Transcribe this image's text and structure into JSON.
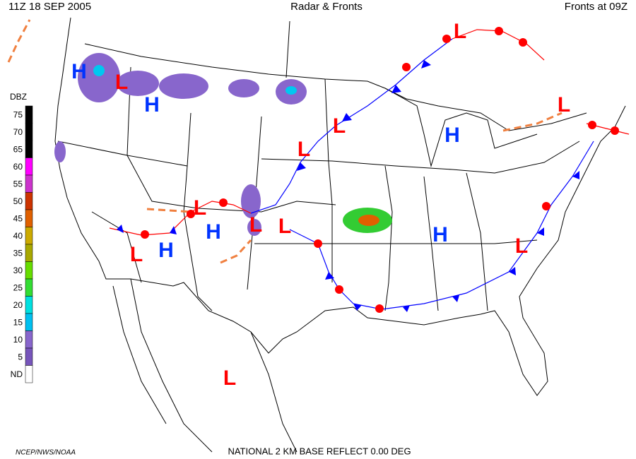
{
  "header": {
    "left": "11Z  18 SEP  2005",
    "center": "Radar & Fronts",
    "right": "Fronts at 09Z"
  },
  "legend": {
    "title": "DBZ",
    "levels": [
      {
        "label": "75",
        "color": "#000000"
      },
      {
        "label": "70",
        "color": "#000000"
      },
      {
        "label": "65",
        "color": "#000000"
      },
      {
        "label": "60",
        "color": "#ff00ff"
      },
      {
        "label": "55",
        "color": "#cc33cc"
      },
      {
        "label": "50",
        "color": "#cc3300"
      },
      {
        "label": "45",
        "color": "#e06000"
      },
      {
        "label": "40",
        "color": "#ccaa00"
      },
      {
        "label": "35",
        "color": "#a8a800"
      },
      {
        "label": "30",
        "color": "#66dd00"
      },
      {
        "label": "25",
        "color": "#33dd33"
      },
      {
        "label": "20",
        "color": "#00e0e0"
      },
      {
        "label": "15",
        "color": "#00c0f0"
      },
      {
        "label": "10",
        "color": "#8866cc"
      },
      {
        "label": "5",
        "color": "#7755bb"
      },
      {
        "label": "ND",
        "color": "#ffffff"
      }
    ]
  },
  "pressure_centers": [
    "H",
    "L",
    "H",
    "L",
    "L",
    "H",
    "L",
    "L",
    "H",
    "L",
    "L",
    "H",
    "L",
    "H",
    "L",
    "L",
    "L"
  ],
  "footer": {
    "left": "NCEP/NWS/NOAA",
    "center": "NATIONAL 2 KM BASE REFLECT 0.00 DEG"
  }
}
